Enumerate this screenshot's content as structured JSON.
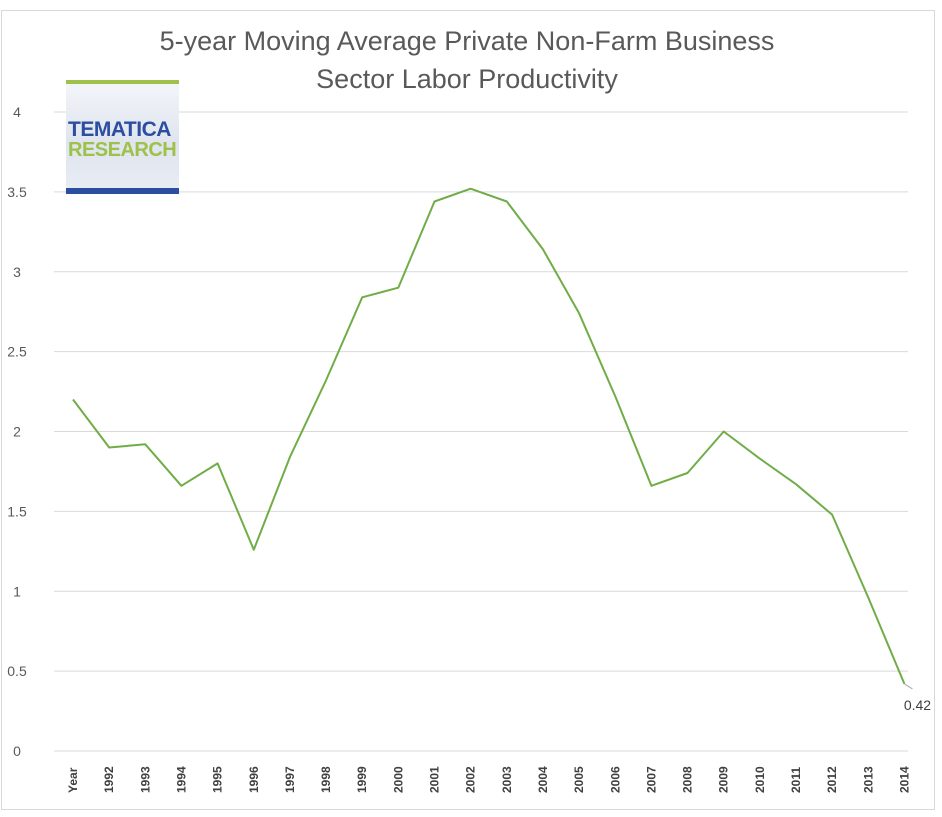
{
  "chart_data": {
    "type": "line",
    "title_lines": [
      "5-year Moving Average Private Non-Farm Business",
      "Sector Labor Productivity"
    ],
    "categories": [
      "Year",
      "1992",
      "1993",
      "1994",
      "1995",
      "1996",
      "1997",
      "1998",
      "1999",
      "2000",
      "2001",
      "2002",
      "2003",
      "2004",
      "2005",
      "2006",
      "2007",
      "2008",
      "2009",
      "2010",
      "2011",
      "2012",
      "2013",
      "2014"
    ],
    "values": [
      2.2,
      1.9,
      1.92,
      1.66,
      1.8,
      1.26,
      1.84,
      2.32,
      2.84,
      2.9,
      3.44,
      3.52,
      3.44,
      3.14,
      2.74,
      2.22,
      1.66,
      1.74,
      2.0,
      1.83,
      1.67,
      1.48,
      0.96,
      0.42
    ],
    "yticks": [
      "0",
      "0.5",
      "1",
      "1.5",
      "2",
      "2.5",
      "3",
      "3.5",
      "4"
    ],
    "ylim": [
      0,
      4
    ],
    "grid": true,
    "legend": "none",
    "line_color": "#70ad47",
    "end_label": "0.42"
  },
  "logo": {
    "line1": "TEMATICA",
    "line2": "RESEARCH"
  }
}
